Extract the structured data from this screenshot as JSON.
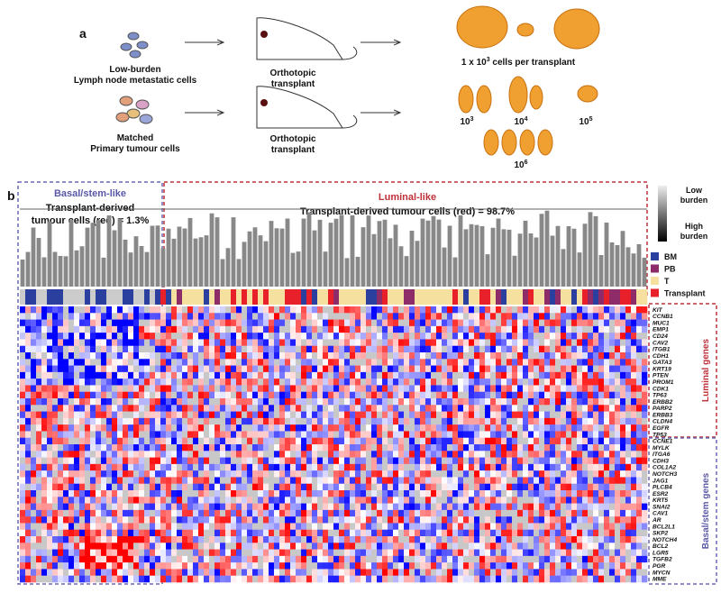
{
  "panel_a": {
    "label": "a",
    "source1": [
      "Low-burden",
      "Lymph node metastatic cells"
    ],
    "source2": [
      "Matched",
      "Primary tumour cells"
    ],
    "transplant1": [
      "Orthotopic",
      "transplant"
    ],
    "transplant2": [
      "Orthotopic",
      "transplant"
    ],
    "result1": {
      "prefix": "1 x 10",
      "exp": "3",
      "suffix": " cells per transplant"
    },
    "doses": [
      {
        "base": "10",
        "exp": "3"
      },
      {
        "base": "10",
        "exp": "4"
      },
      {
        "base": "10",
        "exp": "5"
      },
      {
        "base": "10",
        "exp": "6"
      }
    ]
  },
  "panel_b": {
    "label": "b",
    "basal_title": "Basal/stem-like",
    "basal_sub": [
      "Transplant-derived",
      "tumour cells (red) = 1.3%"
    ],
    "luminal_title": "Luminal-like",
    "luminal_sub": "Transplant-derived tumour cells (red) = 98.7%",
    "scale": {
      "low": [
        "Low",
        "burden"
      ],
      "high": [
        "High",
        "burden"
      ]
    },
    "legend": [
      {
        "name": "BM",
        "color": "#2b3f9e"
      },
      {
        "name": "PB",
        "color": "#8e2c6a"
      },
      {
        "name": "T",
        "color": "#f6e0a0"
      },
      {
        "name": "Transplant",
        "color": "#e8202a"
      }
    ],
    "luminal_genes_label": "Luminal genes",
    "luminal_genes": [
      "KIT",
      "CCNB1",
      "MUC1",
      "EMP1",
      "CD24",
      "CAV2",
      "ITGB1",
      "CDH1",
      "GATA3",
      "KRT19",
      "PTEN",
      "PROM1",
      "CDK1",
      "TP63",
      "ERBB2",
      "PARP2",
      "ERBB3",
      "CLDN4",
      "EGFR",
      "TP53"
    ],
    "basal_genes_label": "Basal/stem genes",
    "basal_genes": [
      "CCNE1",
      "MYLK",
      "ITGA6",
      "CDH3",
      "COL1A2",
      "NOTCH3",
      "JAG1",
      "PLCB4",
      "ESR2",
      "KRT5",
      "SNAI2",
      "CAV1",
      "AR",
      "BCL2L1",
      "SKP2",
      "NOTCH4",
      "BCL2",
      "LGR5",
      "TGFB2",
      "PGR",
      "MYCN",
      "MME"
    ]
  }
}
